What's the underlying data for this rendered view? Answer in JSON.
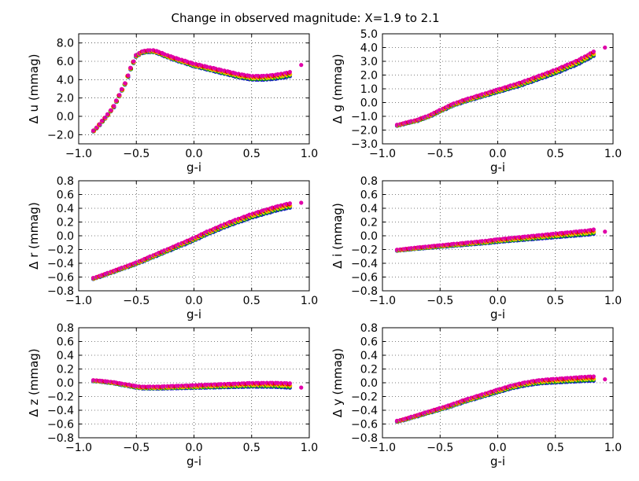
{
  "figure": {
    "title": "Change in observed magnitude: X=1.9 to 2.1",
    "colors": [
      "#1a1acc",
      "#00a000",
      "#d4d400",
      "#ffb000",
      "#e00000",
      "#e000a8"
    ]
  },
  "chart_data": [
    {
      "type": "scatter",
      "panel": "u",
      "xlabel": "g-i",
      "ylabel": "Δ u (mmag)",
      "xlim": [
        -1.0,
        1.0
      ],
      "ylim": [
        -3.0,
        9.0
      ],
      "xticks": [
        "−1.0",
        "−0.5",
        "0.0",
        "0.5",
        "1.0"
      ],
      "xtick_values": [
        -1.0,
        -0.5,
        0.0,
        0.5,
        1.0
      ],
      "yticks": [
        "−2.0",
        "0.0",
        "2.0",
        "4.0",
        "6.0",
        "8.0"
      ],
      "ytick_values": [
        -2,
        0,
        2,
        4,
        6,
        8
      ],
      "grid": true,
      "curve": [
        [
          -0.87,
          -1.6
        ],
        [
          -0.84,
          -1.2
        ],
        [
          -0.8,
          -0.6
        ],
        [
          -0.75,
          0.1
        ],
        [
          -0.7,
          1.0
        ],
        [
          -0.65,
          2.2
        ],
        [
          -0.6,
          3.5
        ],
        [
          -0.55,
          5.2
        ],
        [
          -0.5,
          6.6
        ],
        [
          -0.45,
          7.0
        ],
        [
          -0.4,
          7.1
        ],
        [
          -0.35,
          7.1
        ],
        [
          -0.3,
          6.9
        ],
        [
          -0.2,
          6.4
        ],
        [
          -0.1,
          6.0
        ],
        [
          0.0,
          5.6
        ],
        [
          0.1,
          5.3
        ],
        [
          0.2,
          5.0
        ],
        [
          0.3,
          4.7
        ],
        [
          0.4,
          4.4
        ],
        [
          0.5,
          4.2
        ],
        [
          0.6,
          4.2
        ],
        [
          0.7,
          4.3
        ],
        [
          0.8,
          4.5
        ],
        [
          0.83,
          4.6
        ]
      ],
      "outlier": [
        0.93,
        5.6
      ]
    },
    {
      "type": "scatter",
      "panel": "g",
      "xlabel": "g-i",
      "ylabel": "Δ g (mmag)",
      "xlim": [
        -1.0,
        1.0
      ],
      "ylim": [
        -3.0,
        5.0
      ],
      "xticks": [
        "−1.0",
        "−0.5",
        "0.0",
        "0.5",
        "1.0"
      ],
      "xtick_values": [
        -1.0,
        -0.5,
        0.0,
        0.5,
        1.0
      ],
      "yticks": [
        "−3.0",
        "−2.0",
        "−1.0",
        "0.0",
        "1.0",
        "2.0",
        "3.0",
        "4.0",
        "5.0"
      ],
      "ytick_values": [
        -3,
        -2,
        -1,
        0,
        1,
        2,
        3,
        4,
        5
      ],
      "grid": true,
      "curve": [
        [
          -0.87,
          -1.65
        ],
        [
          -0.8,
          -1.5
        ],
        [
          -0.7,
          -1.3
        ],
        [
          -0.6,
          -1.0
        ],
        [
          -0.5,
          -0.6
        ],
        [
          -0.4,
          -0.2
        ],
        [
          -0.3,
          0.1
        ],
        [
          -0.2,
          0.35
        ],
        [
          -0.1,
          0.6
        ],
        [
          0.0,
          0.85
        ],
        [
          0.1,
          1.1
        ],
        [
          0.2,
          1.35
        ],
        [
          0.3,
          1.65
        ],
        [
          0.4,
          1.95
        ],
        [
          0.5,
          2.25
        ],
        [
          0.6,
          2.6
        ],
        [
          0.7,
          2.95
        ],
        [
          0.8,
          3.4
        ],
        [
          0.83,
          3.55
        ]
      ],
      "outlier": [
        0.93,
        4.0
      ]
    },
    {
      "type": "scatter",
      "panel": "r",
      "xlabel": "g-i",
      "ylabel": "Δ r (mmag)",
      "xlim": [
        -1.0,
        1.0
      ],
      "ylim": [
        -0.8,
        0.8
      ],
      "xticks": [
        "−1.0",
        "−0.5",
        "0.0",
        "0.5",
        "1.0"
      ],
      "xtick_values": [
        -1.0,
        -0.5,
        0.0,
        0.5,
        1.0
      ],
      "yticks": [
        "−0.8",
        "−0.6",
        "−0.4",
        "−0.2",
        "0.0",
        "0.2",
        "0.4",
        "0.6",
        "0.8"
      ],
      "ytick_values": [
        -0.8,
        -0.6,
        -0.4,
        -0.2,
        0.0,
        0.2,
        0.4,
        0.6,
        0.8
      ],
      "grid": true,
      "curve": [
        [
          -0.87,
          -0.62
        ],
        [
          -0.8,
          -0.58
        ],
        [
          -0.7,
          -0.52
        ],
        [
          -0.6,
          -0.46
        ],
        [
          -0.5,
          -0.4
        ],
        [
          -0.4,
          -0.33
        ],
        [
          -0.3,
          -0.26
        ],
        [
          -0.2,
          -0.19
        ],
        [
          -0.1,
          -0.12
        ],
        [
          0.0,
          -0.05
        ],
        [
          0.1,
          0.03
        ],
        [
          0.2,
          0.1
        ],
        [
          0.3,
          0.17
        ],
        [
          0.4,
          0.23
        ],
        [
          0.5,
          0.29
        ],
        [
          0.6,
          0.34
        ],
        [
          0.7,
          0.39
        ],
        [
          0.8,
          0.43
        ],
        [
          0.83,
          0.44
        ]
      ],
      "outlier": [
        0.93,
        0.48
      ]
    },
    {
      "type": "scatter",
      "panel": "i",
      "xlabel": "g-i",
      "ylabel": "Δ i (mmag)",
      "xlim": [
        -1.0,
        1.0
      ],
      "ylim": [
        -0.8,
        0.8
      ],
      "xticks": [
        "−1.0",
        "−0.5",
        "0.0",
        "0.5",
        "1.0"
      ],
      "xtick_values": [
        -1.0,
        -0.5,
        0.0,
        0.5,
        1.0
      ],
      "yticks": [
        "−0.8",
        "−0.6",
        "−0.4",
        "−0.2",
        "0.0",
        "0.2",
        "0.4",
        "0.6",
        "0.8"
      ],
      "ytick_values": [
        -0.8,
        -0.6,
        -0.4,
        -0.2,
        0.0,
        0.2,
        0.4,
        0.6,
        0.8
      ],
      "grid": true,
      "curve": [
        [
          -0.87,
          -0.21
        ],
        [
          -0.7,
          -0.18
        ],
        [
          -0.5,
          -0.15
        ],
        [
          -0.3,
          -0.12
        ],
        [
          -0.1,
          -0.09
        ],
        [
          0.0,
          -0.07
        ],
        [
          0.2,
          -0.04
        ],
        [
          0.4,
          -0.01
        ],
        [
          0.6,
          0.02
        ],
        [
          0.8,
          0.05
        ],
        [
          0.83,
          0.06
        ]
      ],
      "outlier": [
        0.93,
        0.06
      ]
    },
    {
      "type": "scatter",
      "panel": "z",
      "xlabel": "g-i",
      "ylabel": "Δ z (mmag)",
      "xlim": [
        -1.0,
        1.0
      ],
      "ylim": [
        -0.8,
        0.8
      ],
      "xticks": [
        "−1.0",
        "−0.5",
        "0.0",
        "0.5",
        "1.0"
      ],
      "xtick_values": [
        -1.0,
        -0.5,
        0.0,
        0.5,
        1.0
      ],
      "yticks": [
        "−0.8",
        "−0.6",
        "−0.4",
        "−0.2",
        "0.0",
        "0.2",
        "0.4",
        "0.6",
        "0.8"
      ],
      "ytick_values": [
        -0.8,
        -0.6,
        -0.4,
        -0.2,
        0.0,
        0.2,
        0.4,
        0.6,
        0.8
      ],
      "grid": true,
      "curve": [
        [
          -0.87,
          0.03
        ],
        [
          -0.8,
          0.02
        ],
        [
          -0.7,
          0.0
        ],
        [
          -0.6,
          -0.03
        ],
        [
          -0.5,
          -0.06
        ],
        [
          -0.45,
          -0.07
        ],
        [
          -0.3,
          -0.07
        ],
        [
          -0.1,
          -0.06
        ],
        [
          0.1,
          -0.05
        ],
        [
          0.3,
          -0.04
        ],
        [
          0.5,
          -0.03
        ],
        [
          0.7,
          -0.03
        ],
        [
          0.83,
          -0.04
        ]
      ],
      "outlier": [
        0.93,
        -0.07
      ]
    },
    {
      "type": "scatter",
      "panel": "y",
      "xlabel": "g-i",
      "ylabel": "Δ y (mmag)",
      "xlim": [
        -1.0,
        1.0
      ],
      "ylim": [
        -0.8,
        0.8
      ],
      "xticks": [
        "−1.0",
        "−0.5",
        "0.0",
        "0.5",
        "1.0"
      ],
      "xtick_values": [
        -1.0,
        -0.5,
        0.0,
        0.5,
        1.0
      ],
      "yticks": [
        "−0.8",
        "−0.6",
        "−0.4",
        "−0.2",
        "0.0",
        "0.2",
        "0.4",
        "0.6",
        "0.8"
      ],
      "ytick_values": [
        -0.8,
        -0.6,
        -0.4,
        -0.2,
        0.0,
        0.2,
        0.4,
        0.6,
        0.8
      ],
      "grid": true,
      "curve": [
        [
          -0.87,
          -0.56
        ],
        [
          -0.8,
          -0.53
        ],
        [
          -0.7,
          -0.48
        ],
        [
          -0.6,
          -0.43
        ],
        [
          -0.5,
          -0.38
        ],
        [
          -0.4,
          -0.33
        ],
        [
          -0.3,
          -0.27
        ],
        [
          -0.2,
          -0.22
        ],
        [
          -0.1,
          -0.17
        ],
        [
          0.0,
          -0.12
        ],
        [
          0.1,
          -0.07
        ],
        [
          0.2,
          -0.03
        ],
        [
          0.3,
          0.0
        ],
        [
          0.4,
          0.02
        ],
        [
          0.5,
          0.03
        ],
        [
          0.6,
          0.04
        ],
        [
          0.7,
          0.05
        ],
        [
          0.8,
          0.06
        ],
        [
          0.83,
          0.06
        ]
      ],
      "outlier": [
        0.93,
        0.05
      ]
    }
  ]
}
